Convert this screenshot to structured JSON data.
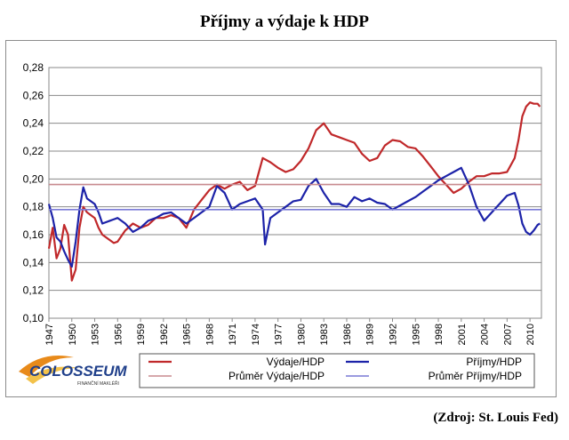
{
  "title": "Příjmy a výdaje k HDP",
  "source": "(Zdroj: St. Louis Fed)",
  "logo": {
    "text": "COLOSSEUM",
    "tagline": "FINANČNÍ MAKLÉŘI"
  },
  "chart_data": {
    "type": "line",
    "ylim": [
      0.1,
      0.28
    ],
    "xlim": [
      1947,
      2011.5
    ],
    "yticks": [
      "0,10",
      "0,12",
      "0,14",
      "0,16",
      "0,18",
      "0,20",
      "0,22",
      "0,24",
      "0,26",
      "0,28"
    ],
    "ytick_values": [
      0.1,
      0.12,
      0.14,
      0.16,
      0.18,
      0.2,
      0.22,
      0.24,
      0.26,
      0.28
    ],
    "xticks": [
      "1947",
      "1950",
      "1953",
      "1956",
      "1959",
      "1962",
      "1965",
      "1968",
      "1971",
      "1974",
      "1977",
      "1980",
      "1983",
      "1986",
      "1989",
      "1992",
      "1995",
      "1998",
      "2001",
      "2004",
      "2007",
      "2010"
    ],
    "xtick_values": [
      1947,
      1950,
      1953,
      1956,
      1959,
      1962,
      1965,
      1968,
      1971,
      1974,
      1977,
      1980,
      1983,
      1986,
      1989,
      1992,
      1995,
      1998,
      2001,
      2004,
      2007,
      2010
    ],
    "grid": true,
    "legend_position": "bottom",
    "series": [
      {
        "name": "Výdaje/HDP",
        "color": "#c0282a",
        "x": [
          1947,
          1947.5,
          1948,
          1948.5,
          1949,
          1949.5,
          1950,
          1950.5,
          1951,
          1951.5,
          1952,
          1953,
          1953.5,
          1954,
          1955,
          1955.5,
          1956,
          1957,
          1958,
          1959,
          1960,
          1961,
          1962,
          1963,
          1964,
          1965,
          1966,
          1967,
          1968,
          1969,
          1970,
          1971,
          1972,
          1973,
          1974,
          1975,
          1976,
          1977,
          1978,
          1979,
          1980,
          1981,
          1982,
          1983,
          1984,
          1985,
          1986,
          1987,
          1988,
          1989,
          1990,
          1991,
          1992,
          1993,
          1994,
          1995,
          1996,
          1997,
          1998,
          1999,
          2000,
          2001,
          2002,
          2003,
          2004,
          2005,
          2006,
          2007,
          2008,
          2008.5,
          2009,
          2009.5,
          2010,
          2010.5,
          2011,
          2011.3
        ],
        "y": [
          0.15,
          0.165,
          0.143,
          0.15,
          0.167,
          0.16,
          0.127,
          0.135,
          0.165,
          0.18,
          0.176,
          0.172,
          0.165,
          0.16,
          0.156,
          0.154,
          0.155,
          0.163,
          0.168,
          0.165,
          0.167,
          0.172,
          0.172,
          0.174,
          0.172,
          0.165,
          0.178,
          0.185,
          0.192,
          0.196,
          0.193,
          0.196,
          0.198,
          0.192,
          0.195,
          0.215,
          0.212,
          0.208,
          0.205,
          0.207,
          0.213,
          0.222,
          0.235,
          0.24,
          0.232,
          0.23,
          0.228,
          0.226,
          0.218,
          0.213,
          0.215,
          0.224,
          0.228,
          0.227,
          0.223,
          0.222,
          0.216,
          0.209,
          0.202,
          0.196,
          0.19,
          0.193,
          0.198,
          0.202,
          0.202,
          0.204,
          0.204,
          0.205,
          0.215,
          0.228,
          0.245,
          0.252,
          0.255,
          0.254,
          0.254,
          0.252
        ]
      },
      {
        "name": "Příjmy/HDP",
        "color": "#1c22a8",
        "x": [
          1947,
          1947.5,
          1948,
          1948.5,
          1949,
          1949.5,
          1950,
          1950.5,
          1951,
          1951.5,
          1952,
          1953,
          1953.5,
          1954,
          1955,
          1956,
          1957,
          1958,
          1959,
          1960,
          1961,
          1962,
          1963,
          1964,
          1965,
          1966,
          1967,
          1968,
          1969,
          1970,
          1971,
          1972,
          1973,
          1974,
          1975,
          1975.3,
          1976,
          1977,
          1978,
          1979,
          1980,
          1981,
          1982,
          1983,
          1984,
          1985,
          1986,
          1987,
          1988,
          1989,
          1990,
          1991,
          1992,
          1993,
          1994,
          1995,
          1996,
          1997,
          1998,
          1999,
          2000,
          2001,
          2002,
          2003,
          2004,
          2005,
          2006,
          2007,
          2008,
          2008.5,
          2009,
          2009.5,
          2010,
          2010.5,
          2011,
          2011.3
        ],
        "y": [
          0.182,
          0.172,
          0.158,
          0.155,
          0.148,
          0.142,
          0.137,
          0.155,
          0.178,
          0.194,
          0.186,
          0.182,
          0.176,
          0.168,
          0.17,
          0.172,
          0.168,
          0.162,
          0.165,
          0.17,
          0.172,
          0.175,
          0.176,
          0.172,
          0.168,
          0.172,
          0.176,
          0.18,
          0.195,
          0.19,
          0.178,
          0.182,
          0.184,
          0.186,
          0.178,
          0.153,
          0.172,
          0.176,
          0.18,
          0.184,
          0.185,
          0.195,
          0.2,
          0.19,
          0.182,
          0.182,
          0.18,
          0.187,
          0.184,
          0.186,
          0.183,
          0.182,
          0.178,
          0.181,
          0.184,
          0.187,
          0.191,
          0.195,
          0.199,
          0.202,
          0.205,
          0.208,
          0.196,
          0.18,
          0.17,
          0.176,
          0.182,
          0.188,
          0.19,
          0.181,
          0.168,
          0.162,
          0.16,
          0.163,
          0.167,
          0.168
        ]
      },
      {
        "name": "Průměr Výdaje/HDP",
        "color": "#c88a8f",
        "value": 0.196
      },
      {
        "name": "Průměr Příjmy/HDP",
        "color": "#7a7ad6",
        "value": 0.178
      }
    ]
  }
}
